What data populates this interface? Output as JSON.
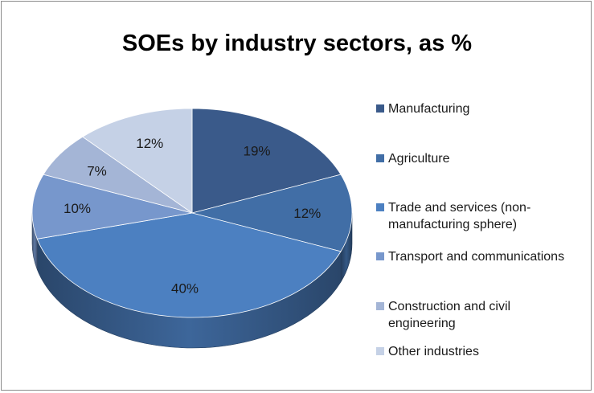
{
  "chart_data": {
    "type": "pie",
    "title": "SOEs by industry sectors, as %",
    "categories": [
      "Manufacturing",
      "Agriculture",
      "Trade and services (non-manufacturing sphere)",
      "Transport and communications",
      "Construction and civil engineering",
      "Other industries"
    ],
    "values": [
      19,
      12,
      40,
      10,
      7,
      12
    ],
    "value_labels": [
      "19%",
      "12%",
      "40%",
      "10%",
      "7%",
      "12%"
    ],
    "colors": [
      "#3a5a8a",
      "#416ea6",
      "#4c80c1",
      "#7797cc",
      "#a4b5d6",
      "#c5d1e6"
    ],
    "legend_placement": "right",
    "style": "3d-pie"
  }
}
